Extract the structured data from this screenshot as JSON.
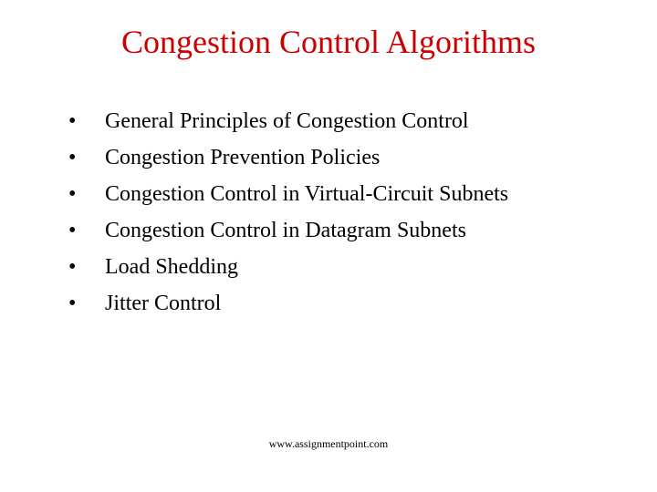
{
  "slide": {
    "title": "Congestion Control Algorithms",
    "title_color": "#cc0000",
    "title_fontsize": 36,
    "bullets": [
      "General Principles of Congestion Control",
      "Congestion Prevention Policies",
      "Congestion Control in Virtual-Circuit Subnets",
      "Congestion Control in Datagram Subnets",
      "Load Shedding",
      "Jitter Control"
    ],
    "bullet_marker": "•",
    "bullet_color": "#000000",
    "bullet_fontsize": 24,
    "text_color": "#000000",
    "background_color": "#ffffff"
  },
  "footer": {
    "text": "www.assignmentpoint.com",
    "color": "#000000",
    "fontsize": 12
  }
}
